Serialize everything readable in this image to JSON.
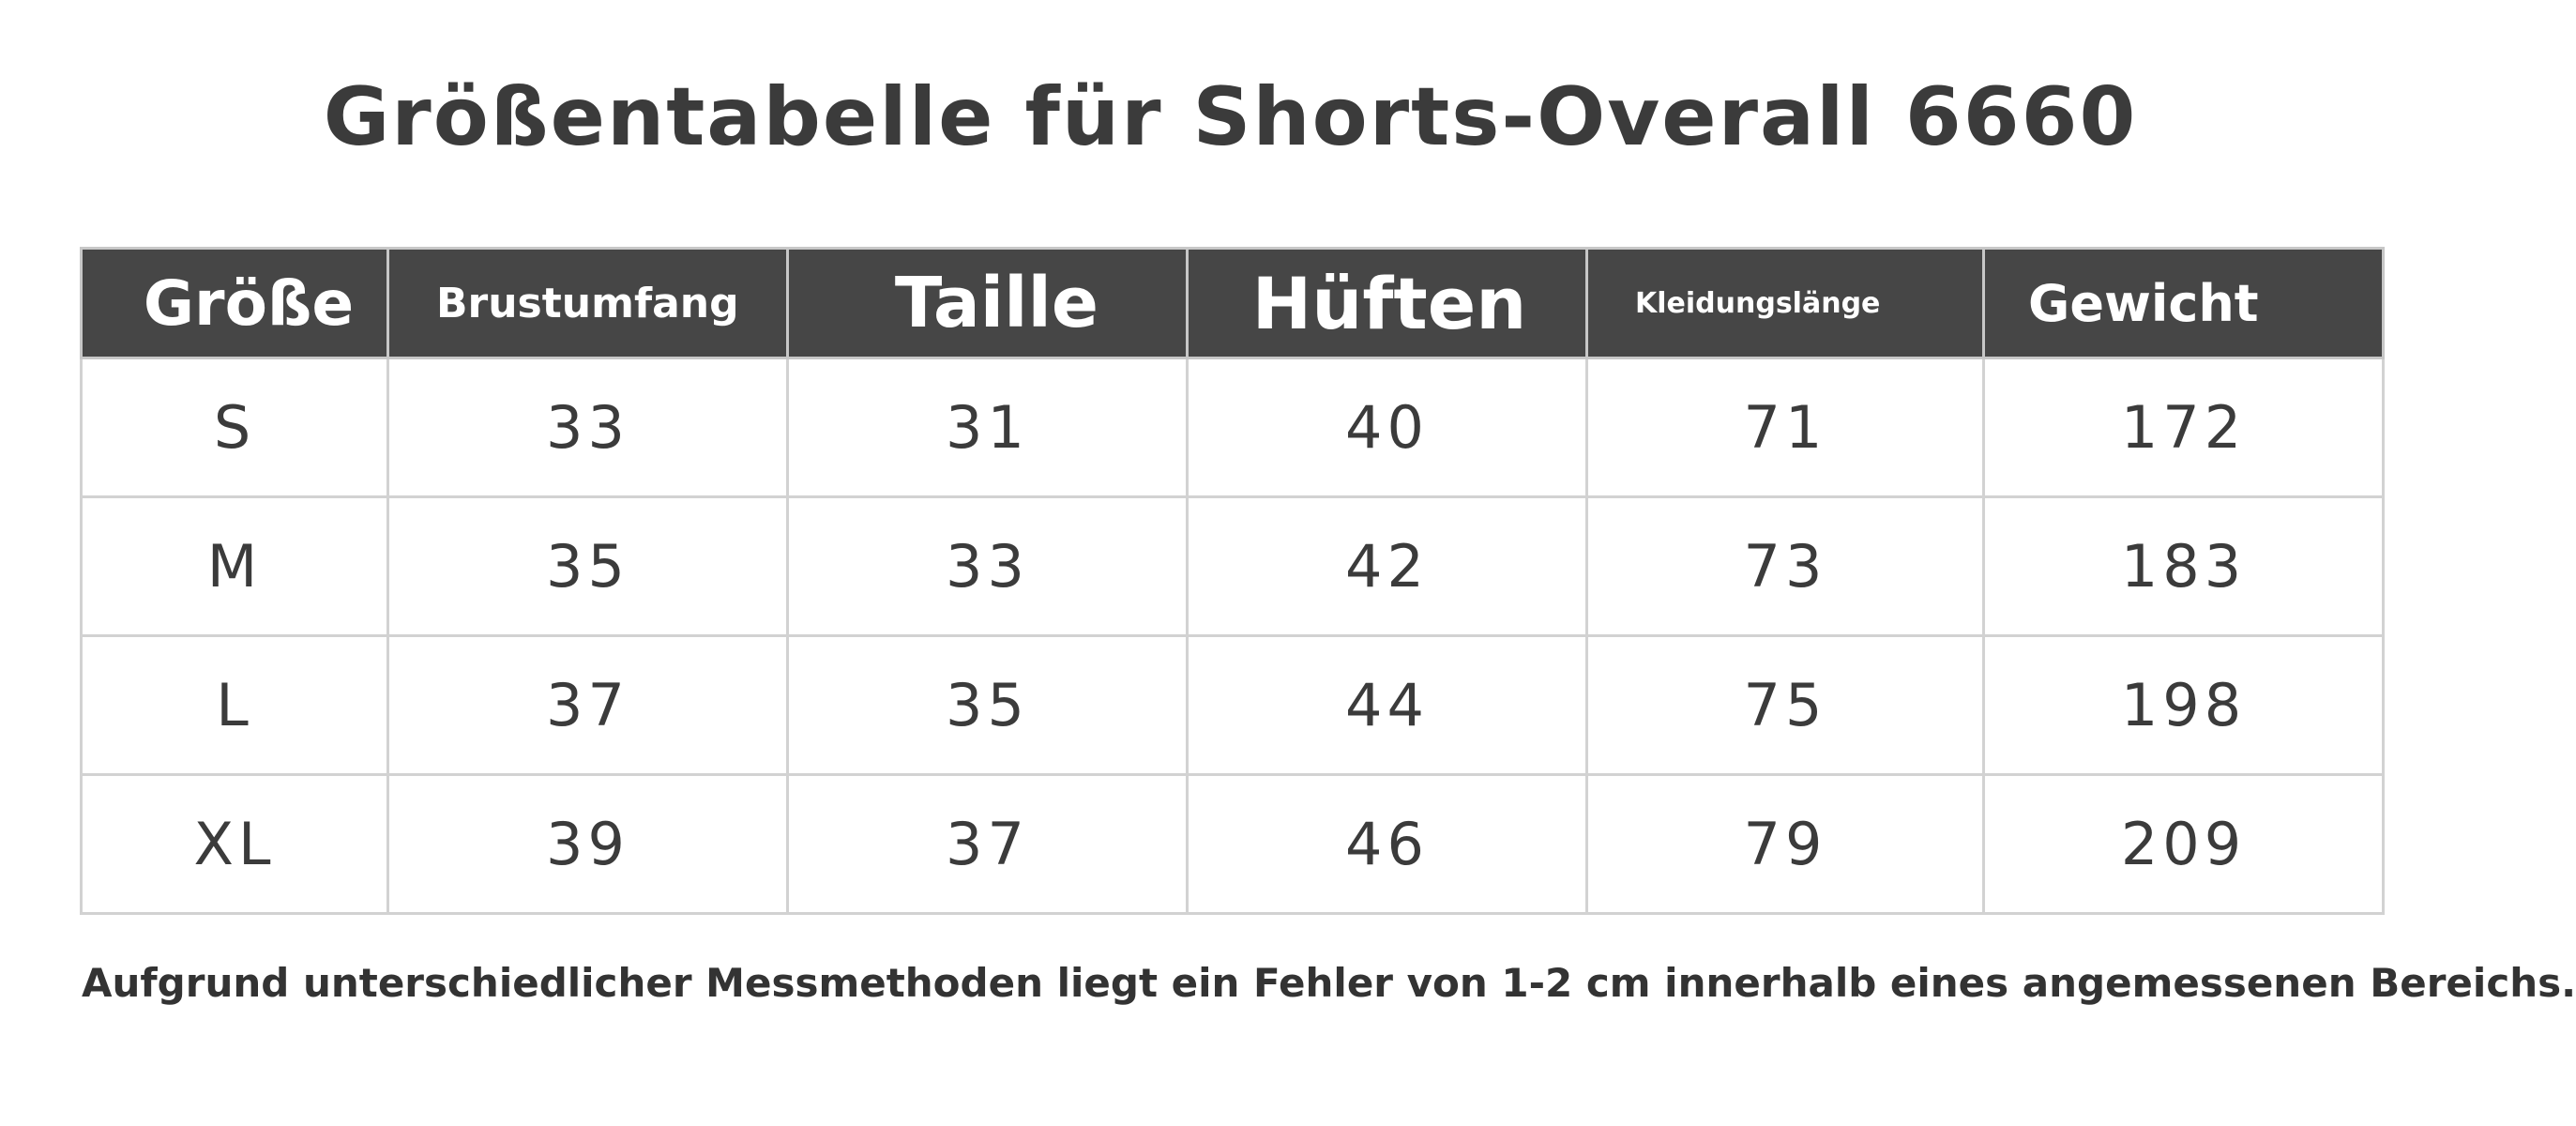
{
  "title": "Größentabelle für Shorts-Overall 6660",
  "table": {
    "headers": [
      "Größe",
      "Brustumfang",
      "Taille",
      "Hüften",
      "Kleidungslänge",
      "Gewicht"
    ],
    "rows": [
      [
        "S",
        "33",
        "31",
        "40",
        "71",
        "172"
      ],
      [
        "M",
        "35",
        "33",
        "42",
        "73",
        "183"
      ],
      [
        "L",
        "37",
        "35",
        "44",
        "75",
        "198"
      ],
      [
        "XL",
        "39",
        "37",
        "46",
        "79",
        "209"
      ]
    ]
  },
  "note": "Aufgrund unterschiedlicher Messmethoden liegt ein Fehler von 1-2 cm innerhalb eines angemessenen Bereichs.",
  "colors": {
    "header_bg": "#464646",
    "header_text": "#ffffff",
    "border": "#d2d2d2",
    "text": "#3b3b3b"
  }
}
